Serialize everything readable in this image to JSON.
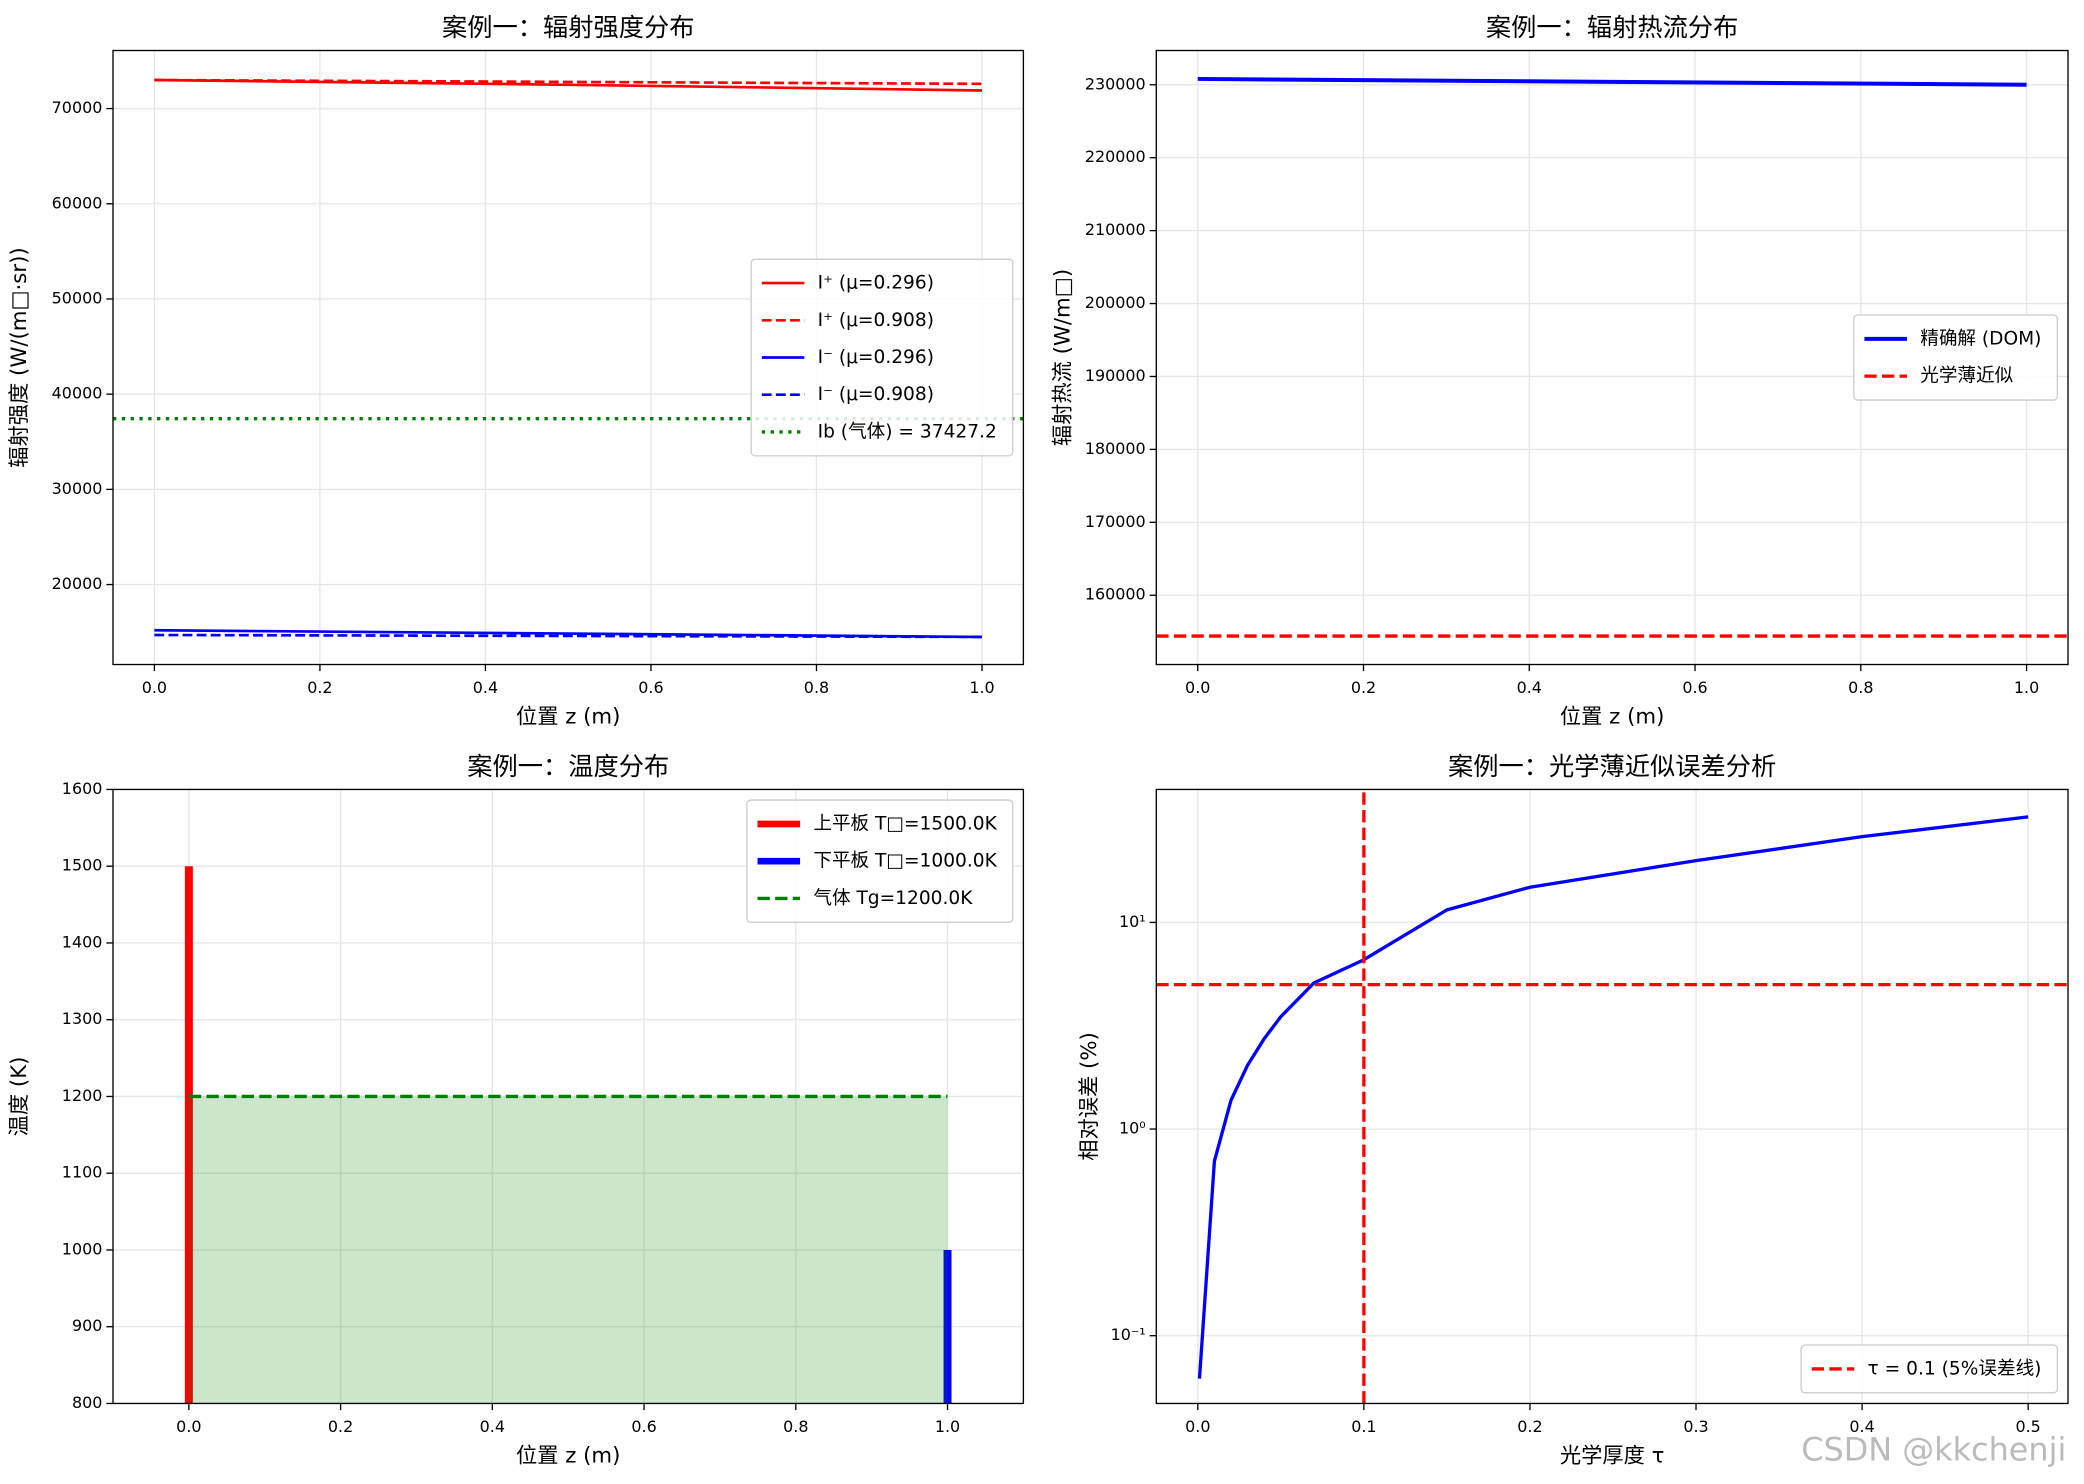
{
  "chart_data": [
    {
      "type": "line",
      "title": "案例一：辐射强度分布",
      "xlabel": "位置 z (m)",
      "ylabel": "辐射强度 (W/(m□·sr))",
      "xlim": [
        -0.05,
        1.05
      ],
      "ylim": [
        11600,
        76100
      ],
      "xticks": [
        {
          "value": 0,
          "label": "0.0"
        },
        0.2,
        0.4,
        0.6,
        0.8,
        {
          "value": 1,
          "label": "1.0"
        }
      ],
      "yticks": [
        20000,
        30000,
        40000,
        50000,
        60000,
        70000
      ],
      "grid": true,
      "legend": "center right",
      "series": [
        {
          "name": "I⁺ (μ=0.296)",
          "color": "#ff0000",
          "style": "solid",
          "width": 2,
          "x": [
            0,
            0.5,
            1
          ],
          "values": [
            73000,
            72500,
            71900
          ]
        },
        {
          "name": "I⁺ (μ=0.908)",
          "color": "#ff0000",
          "style": "dashed",
          "width": 2,
          "x": [
            0,
            0.5,
            1
          ],
          "values": [
            73000,
            72800,
            72600
          ]
        },
        {
          "name": "I⁻ (μ=0.296)",
          "color": "#0000ff",
          "style": "solid",
          "width": 2,
          "x": [
            0,
            0.5,
            1
          ],
          "values": [
            15200,
            14850,
            14500
          ]
        },
        {
          "name": "I⁻ (μ=0.908)",
          "color": "#0000ff",
          "style": "dashed",
          "width": 2,
          "x": [
            0,
            0.5,
            1
          ],
          "values": [
            14700,
            14600,
            14500
          ]
        },
        {
          "name": "Ib (气体) = 37427.2",
          "color": "#008000",
          "style": "dotted",
          "width": 2.5,
          "kind": "hline",
          "values": [
            37427.2
          ]
        }
      ]
    },
    {
      "type": "line",
      "title": "案例一：辐射热流分布",
      "xlabel": "位置 z (m)",
      "ylabel": "辐射热流 (W/m□)",
      "xlim": [
        -0.05,
        1.05
      ],
      "ylim": [
        150500,
        234700
      ],
      "xticks": [
        {
          "value": 0,
          "label": "0.0"
        },
        0.2,
        0.4,
        0.6,
        0.8,
        {
          "value": 1,
          "label": "1.0"
        }
      ],
      "yticks": [
        160000,
        170000,
        180000,
        190000,
        200000,
        210000,
        220000,
        230000
      ],
      "grid": true,
      "legend": "center right",
      "series": [
        {
          "name": "精确解 (DOM)",
          "color": "#0000ff",
          "style": "solid",
          "width": 3,
          "x": [
            0,
            0.5,
            1
          ],
          "values": [
            230800,
            230400,
            230000
          ]
        },
        {
          "name": "光学薄近似",
          "color": "#ff0000",
          "style": "dashed",
          "width": 2.5,
          "kind": "hline",
          "values": [
            154400
          ]
        }
      ]
    },
    {
      "type": "line",
      "title": "案例一：温度分布",
      "xlabel": "位置 z (m)",
      "ylabel": "温度 (K)",
      "xlim": [
        -0.1,
        1.1
      ],
      "ylim": [
        800,
        1600
      ],
      "xticks": [
        {
          "value": 0,
          "label": "0.0"
        },
        0.2,
        0.4,
        0.6,
        0.8,
        {
          "value": 1,
          "label": "1.0"
        }
      ],
      "yticks": [
        800,
        900,
        1000,
        1100,
        1200,
        1300,
        1400,
        1500,
        1600
      ],
      "grid": true,
      "legend": "upper right",
      "series": [
        {
          "name": "上平板 T□=1500.0K",
          "color": "#ff0000",
          "style": "solid",
          "width": 6,
          "kind": "vline",
          "x": [
            0
          ],
          "values": [
            1500
          ]
        },
        {
          "name": "下平板 T□=1000.0K",
          "color": "#0000ff",
          "style": "solid",
          "width": 6,
          "kind": "vline",
          "x": [
            1
          ],
          "values": [
            1000
          ]
        },
        {
          "name": "气体 Tg=1200.0K",
          "color": "#008000",
          "style": "dashed",
          "width": 2.5,
          "fill": true,
          "x": [
            0,
            1
          ],
          "values": [
            1200,
            1200
          ]
        }
      ]
    },
    {
      "type": "line",
      "title": "案例一：光学薄近似误差分析",
      "xlabel": "光学厚度 τ",
      "ylabel": "相对误差 (%)",
      "xlim": [
        -0.025,
        0.524
      ],
      "ylim": [
        0.047,
        44
      ],
      "log_y": true,
      "xticks": [
        {
          "value": 0,
          "label": "0.0"
        },
        0.1,
        0.2,
        0.3,
        0.4,
        0.5
      ],
      "yticks": [
        {
          "value": 0.1,
          "label": "10⁻¹"
        },
        {
          "value": 1,
          "label": "10⁰"
        },
        {
          "value": 10,
          "label": "10¹"
        }
      ],
      "grid": true,
      "legend": "lower right",
      "series": [
        {
          "color": "#0000ff",
          "style": "solid",
          "width": 2.5,
          "x": [
            0.001,
            0.01,
            0.02,
            0.03,
            0.04,
            0.05,
            0.07,
            0.1,
            0.15,
            0.2,
            0.3,
            0.4,
            0.5
          ],
          "values": [
            0.062,
            0.7,
            1.38,
            2.04,
            2.74,
            3.5,
            5.1,
            6.6,
            11.5,
            14.8,
            19.9,
            26,
            32.4
          ]
        },
        {
          "color": "#ff0000",
          "style": "dashed",
          "width": 2.5,
          "kind": "hline",
          "values": [
            5
          ]
        },
        {
          "name": "τ = 0.1 (5%误差线)",
          "color": "#ff0000",
          "style": "dashed",
          "width": 2.5,
          "kind": "vline",
          "x": [
            0.1
          ]
        }
      ]
    }
  ],
  "watermark": "CSDN @kkchenji"
}
